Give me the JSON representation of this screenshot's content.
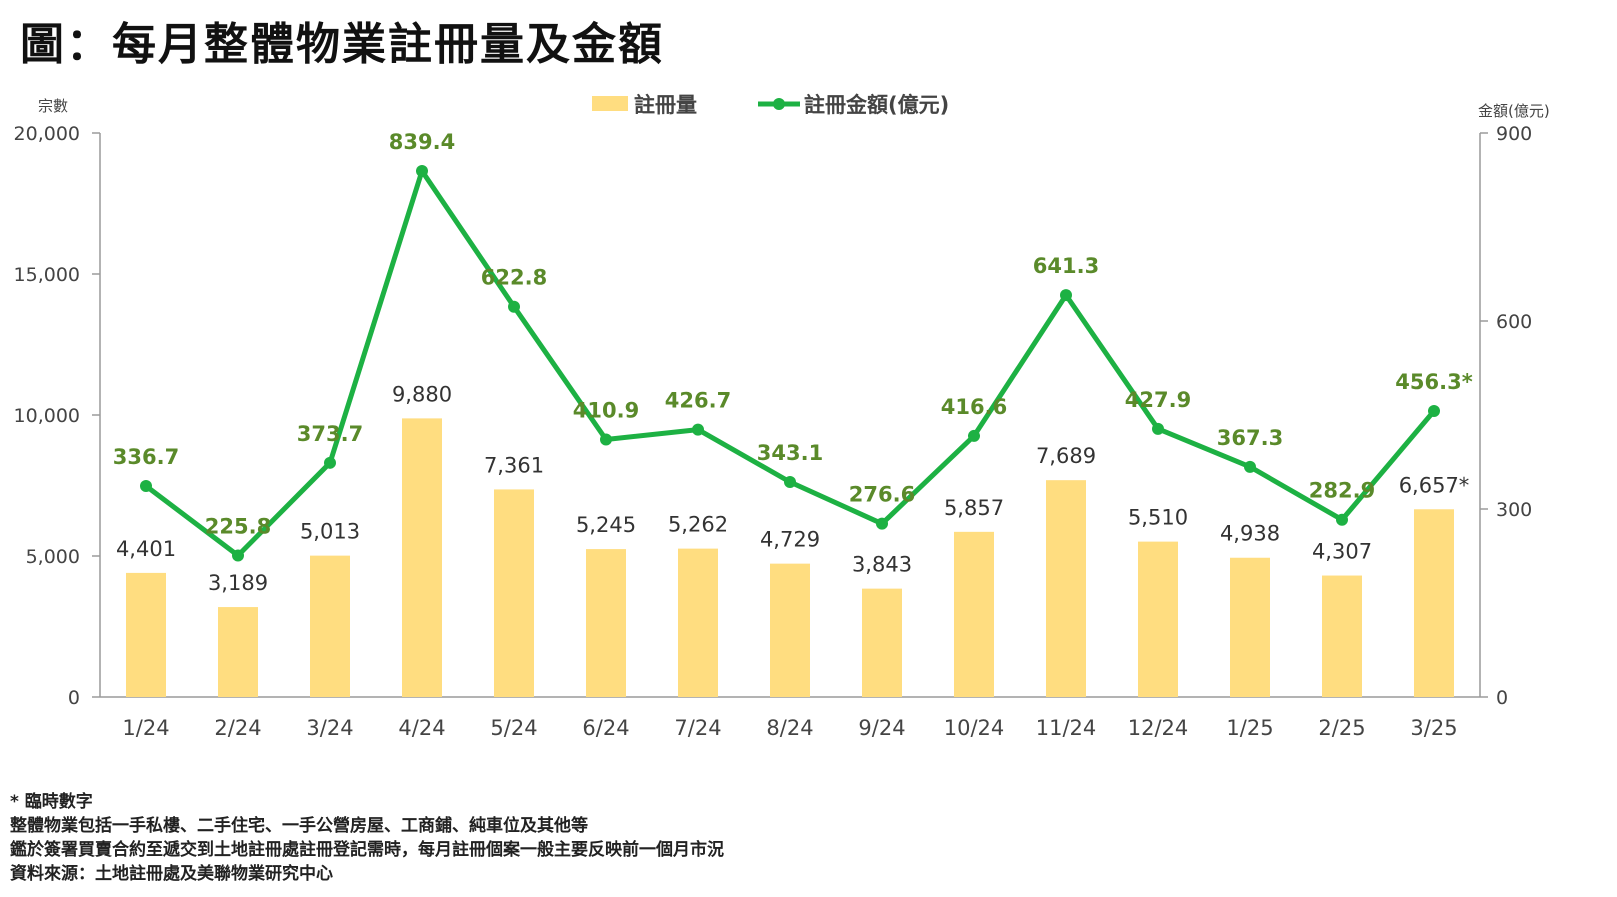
{
  "title": "圖：每月整體物業註冊量及金額",
  "footnotes": [
    "* 臨時數字",
    "整體物業包括一手私樓、二手住宅、一手公營房屋、工商鋪、純車位及其他等",
    "鑑於簽署買賣合約至遞交到土地註冊處註冊登記需時，每月註冊個案一般主要反映前一個月市況",
    "資料來源：土地註冊處及美聯物業研究中心"
  ],
  "chart_data": {
    "type": "bar",
    "categories": [
      "1/24",
      "2/24",
      "3/24",
      "4/24",
      "5/24",
      "6/24",
      "7/24",
      "8/24",
      "9/24",
      "10/24",
      "11/24",
      "12/24",
      "1/25",
      "2/25",
      "3/25"
    ],
    "y_left": {
      "label": "宗數",
      "range": [
        0,
        20000
      ],
      "ticks": [
        "0",
        "5,000",
        "10,000",
        "15,000",
        "20,000"
      ],
      "tick_values": [
        0,
        5000,
        10000,
        15000,
        20000
      ]
    },
    "y_right": {
      "label": "金額(億元)",
      "range": [
        0,
        900
      ],
      "ticks": [
        "0",
        "300",
        "600",
        "900"
      ],
      "tick_values": [
        0,
        300,
        600,
        900
      ]
    },
    "legend_position": "top-center",
    "grid": false,
    "series": [
      {
        "name": "註冊量",
        "type": "bar",
        "axis": "left",
        "color": "#FFDD80",
        "values": [
          4401,
          3189,
          5013,
          9880,
          7361,
          5245,
          5262,
          4729,
          3843,
          5857,
          7689,
          5510,
          4938,
          4307,
          6657
        ],
        "labels": [
          "4,401",
          "3,189",
          "5,013",
          "9,880",
          "7,361",
          "5,245",
          "5,262",
          "4,729",
          "3,843",
          "5,857",
          "7,689",
          "5,510",
          "4,938",
          "4,307",
          "6,657*"
        ]
      },
      {
        "name": "註冊金額(億元)",
        "type": "line",
        "axis": "right",
        "color": "#1DB143",
        "label_color": "#5A8A2A",
        "values": [
          336.7,
          225.8,
          373.7,
          839.4,
          622.8,
          410.9,
          426.7,
          343.1,
          276.6,
          416.6,
          641.3,
          427.9,
          367.3,
          282.9,
          456.3
        ],
        "labels": [
          "336.7",
          "225.8",
          "373.7",
          "839.4",
          "622.8",
          "410.9",
          "426.7",
          "343.1",
          "276.6",
          "416.6",
          "641.3",
          "427.9",
          "367.3",
          "282.9",
          "456.3*"
        ]
      }
    ]
  }
}
